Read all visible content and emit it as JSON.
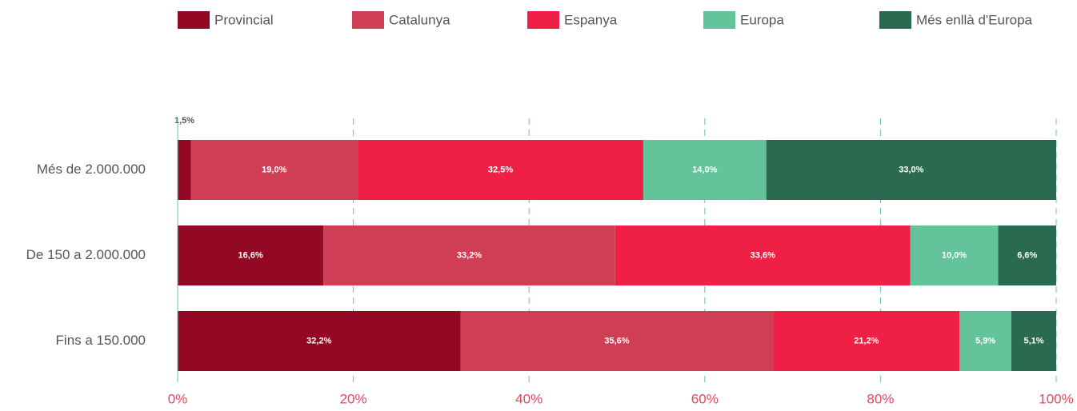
{
  "chart_data": {
    "type": "stacked_bar_horizontal",
    "categories": [
      "Més de 2.000.000",
      "De 150 a 2.000.000",
      "Fins a 150.000"
    ],
    "series": [
      {
        "name": "Provincial",
        "color": "#930822",
        "values": [
          1.5,
          16.6,
          32.2
        ],
        "value_labels": [
          "1,5%",
          "16,6%",
          "32,2%"
        ]
      },
      {
        "name": "Catalunya",
        "color": "#d03e55",
        "values": [
          19.0,
          33.2,
          35.6
        ],
        "value_labels": [
          "19,0%",
          "33,2%",
          "35,6%"
        ]
      },
      {
        "name": "Espanya",
        "color": "#ef1f45",
        "values": [
          32.5,
          33.6,
          21.2
        ],
        "value_labels": [
          "32,5%",
          "33,6%",
          "21,2%"
        ]
      },
      {
        "name": "Europa",
        "color": "#63c39b",
        "values": [
          14.0,
          10.0,
          5.9
        ],
        "value_labels": [
          "14,0%",
          "10,0%",
          "5,9%"
        ]
      },
      {
        "name": "Més enllà d'Europa",
        "color": "#2a6a50",
        "values": [
          33.0,
          6.6,
          5.1
        ],
        "value_labels": [
          "33,0%",
          "6,6%",
          "5,1%"
        ]
      }
    ],
    "xlim": [
      0,
      100
    ],
    "xticks": [
      {
        "value": 0,
        "label": "0%"
      },
      {
        "value": 20,
        "label": "20%"
      },
      {
        "value": 40,
        "label": "40%"
      },
      {
        "value": 60,
        "label": "60%"
      },
      {
        "value": 80,
        "label": "80%"
      },
      {
        "value": 100,
        "label": "100%"
      }
    ],
    "grid": true,
    "legend": "top"
  }
}
